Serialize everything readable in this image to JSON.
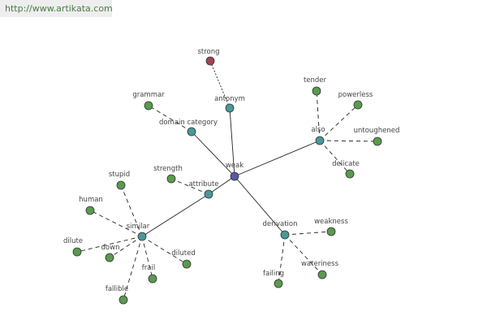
{
  "watermark": "http://www.artikata.com",
  "nodes": [
    {
      "label": "weak"
    },
    {
      "label": "antonym"
    },
    {
      "label": "strong"
    },
    {
      "label": "domain category"
    },
    {
      "label": "grammar"
    },
    {
      "label": "also"
    },
    {
      "label": "tender"
    },
    {
      "label": "powerless"
    },
    {
      "label": "untoughened"
    },
    {
      "label": "delicate"
    },
    {
      "label": "attribute"
    },
    {
      "label": "strength"
    },
    {
      "label": "similar"
    },
    {
      "label": "stupid"
    },
    {
      "label": "human"
    },
    {
      "label": "dilute"
    },
    {
      "label": "down"
    },
    {
      "label": "frail"
    },
    {
      "label": "diluted"
    },
    {
      "label": "fallible"
    },
    {
      "label": "derivation"
    },
    {
      "label": "weakness"
    },
    {
      "label": "wateriness"
    },
    {
      "label": "failing"
    }
  ]
}
